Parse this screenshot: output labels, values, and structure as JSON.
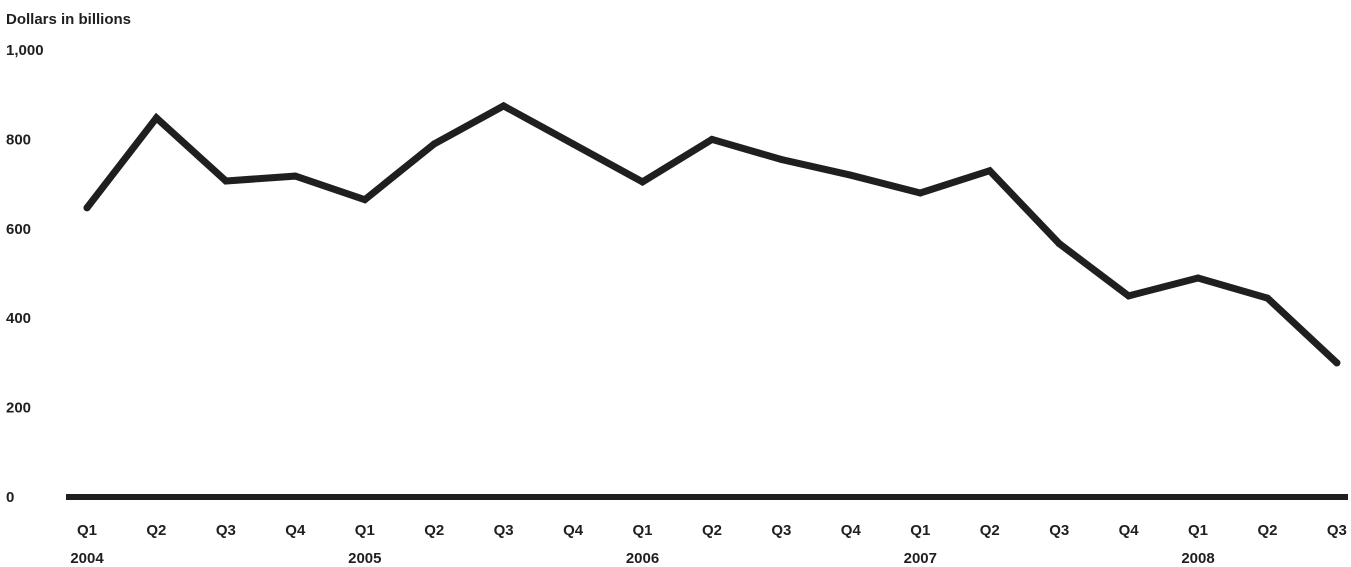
{
  "chart_data": {
    "type": "line",
    "ylabel": "Dollars in billions",
    "ylim": [
      0,
      1000
    ],
    "yticks": [
      "0",
      "200",
      "400",
      "600",
      "800",
      "1,000"
    ],
    "categories": [
      "Q1",
      "Q2",
      "Q3",
      "Q4",
      "Q1",
      "Q2",
      "Q3",
      "Q4",
      "Q1",
      "Q2",
      "Q3",
      "Q4",
      "Q1",
      "Q2",
      "Q3",
      "Q4",
      "Q1",
      "Q2",
      "Q3"
    ],
    "years": [
      {
        "label": "2004",
        "at_index": 0
      },
      {
        "label": "2005",
        "at_index": 4
      },
      {
        "label": "2006",
        "at_index": 8
      },
      {
        "label": "2007",
        "at_index": 12
      },
      {
        "label": "2008",
        "at_index": 16
      }
    ],
    "series": [
      {
        "values": [
          647,
          848,
          707,
          718,
          665,
          790,
          875,
          790,
          705,
          800,
          755,
          720,
          680,
          730,
          567,
          450,
          490,
          445,
          300
        ]
      }
    ],
    "grid": false,
    "line_color": "#1f1f1f"
  }
}
